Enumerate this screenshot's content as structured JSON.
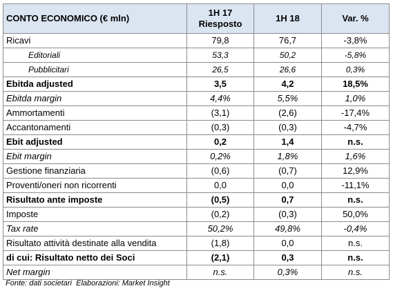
{
  "table": {
    "header": [
      [
        "CONTO ECONOMICO (€ mln)"
      ],
      [
        "1H 17",
        "Riesposto"
      ],
      [
        "1H 18"
      ],
      [
        "Var. %"
      ]
    ],
    "rows": [
      {
        "style": "normal",
        "cells": [
          "Ricavi",
          "79,8",
          "76,7",
          "-3,8%"
        ]
      },
      {
        "style": "sub",
        "cells": [
          "Editoriali",
          "53,3",
          "50,2",
          "-5,8%"
        ]
      },
      {
        "style": "sub",
        "cells": [
          "Pubblicitari",
          "26,5",
          "26,6",
          "0,3%"
        ]
      },
      {
        "style": "bold",
        "cells": [
          "Ebitda adjusted",
          "3,5",
          "4,2",
          "18,5%"
        ]
      },
      {
        "style": "italic",
        "cells": [
          "Ebitda margin",
          "4,4%",
          "5,5%",
          "1,0%"
        ]
      },
      {
        "style": "normal",
        "cells": [
          "Ammortamenti",
          "(3,1)",
          "(2,6)",
          "-17,4%"
        ]
      },
      {
        "style": "normal",
        "cells": [
          "Accantonamenti",
          "(0,3)",
          "(0,3)",
          "-4,7%"
        ]
      },
      {
        "style": "bold",
        "cells": [
          "Ebit adjusted",
          "0,2",
          "1,4",
          "n.s."
        ]
      },
      {
        "style": "italic",
        "cells": [
          "Ebit margin",
          "0,2%",
          "1,8%",
          "1,6%"
        ]
      },
      {
        "style": "normal",
        "cells": [
          "Gestione finanziaria",
          "(0,6)",
          "(0,7)",
          "12,9%"
        ]
      },
      {
        "style": "normal",
        "cells": [
          "Proventi/oneri non ricorrenti",
          "0,0",
          "0,0",
          "-11,1%"
        ]
      },
      {
        "style": "bold",
        "cells": [
          "Risultato ante imposte",
          "(0,5)",
          "0,7",
          "n.s."
        ]
      },
      {
        "style": "normal",
        "cells": [
          "Imposte",
          "(0,2)",
          "(0,3)",
          "50,0%"
        ]
      },
      {
        "style": "italic",
        "cells": [
          "Tax rate",
          "50,2%",
          "49,8%",
          "-0,4%"
        ]
      },
      {
        "style": "normal",
        "cells": [
          "Risultato attività destinate alla vendita",
          "(1,8)",
          "0,0",
          "n.s."
        ]
      },
      {
        "style": "bold",
        "cells": [
          "di cui: Risultato netto dei Soci",
          "(2,1)",
          "0,3",
          "n.s."
        ]
      },
      {
        "style": "italic",
        "cells": [
          "Net margin",
          "n.s.",
          "0,3%",
          "n.s."
        ]
      }
    ],
    "footer": "Fonte: dati societari  Elaborazioni: Market Insight"
  }
}
